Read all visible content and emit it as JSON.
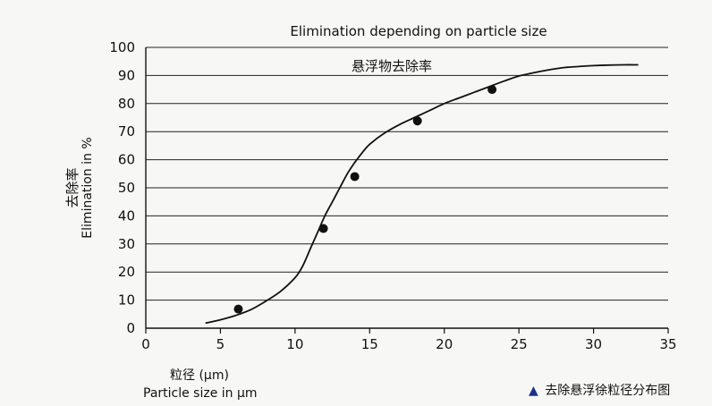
{
  "chart_data": {
    "type": "line",
    "title": "Elimination depending on particle size",
    "curve_label": "悬浮物去除率",
    "ylabel_cn": "去除率",
    "ylabel": "Elimination in %",
    "xlabel_cn": "粒径 (μm)",
    "xlabel": "Particle size in μm",
    "xlim": [
      0,
      35
    ],
    "ylim": [
      0,
      100
    ],
    "x_ticks": [
      0,
      5,
      10,
      15,
      20,
      25,
      30,
      35
    ],
    "y_ticks": [
      0,
      10,
      20,
      30,
      40,
      50,
      60,
      70,
      80,
      90,
      100
    ],
    "grid": "horizontal",
    "series": [
      {
        "kind": "curve",
        "x": [
          4,
          5,
          6,
          7,
          8,
          9,
          10,
          10.5,
          11,
          11.5,
          12,
          12.5,
          13,
          13.5,
          14,
          14.5,
          15,
          16,
          17,
          18,
          19,
          20,
          21,
          22,
          23,
          24,
          25,
          26,
          27,
          28,
          29,
          30,
          31,
          32,
          33
        ],
        "values": [
          1.8,
          3.0,
          4.5,
          6.5,
          9.5,
          13,
          18,
          22,
          28,
          34,
          40,
          45,
          50,
          55,
          59,
          62.5,
          65.5,
          69.5,
          72.5,
          75,
          77.5,
          80,
          82,
          84,
          86,
          88,
          89.8,
          91,
          92,
          92.8,
          93.2,
          93.5,
          93.7,
          93.8,
          93.8
        ]
      },
      {
        "kind": "points",
        "x": [
          6.2,
          11.9,
          14.0,
          18.2,
          23.2
        ],
        "values": [
          6.8,
          35.5,
          54,
          73.8,
          85
        ]
      }
    ]
  },
  "caption": {
    "marker": "▲",
    "text": "去除悬浮徐粒径分布图"
  }
}
